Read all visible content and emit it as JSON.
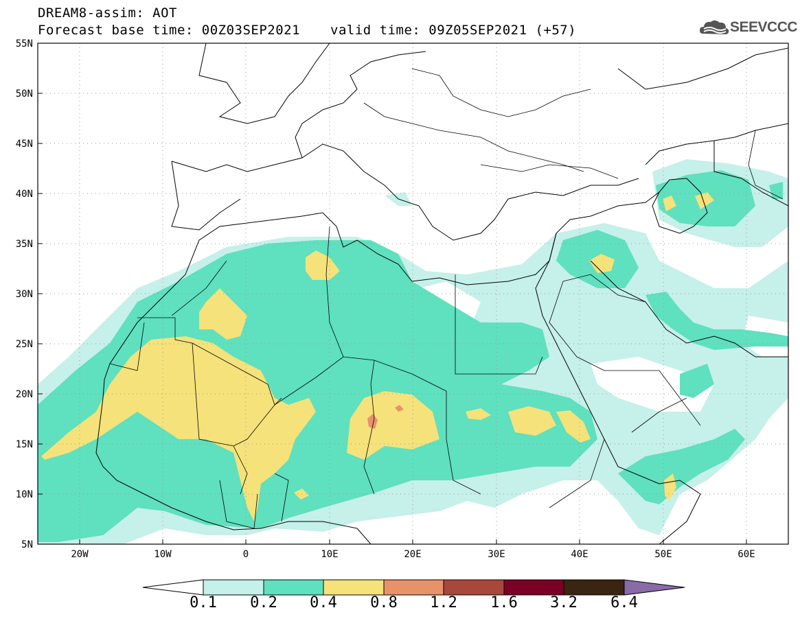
{
  "title": {
    "line1": "DREAM8-assim: AOT",
    "line2": "Forecast base time: 00Z03SEP2021",
    "valid": "valid time: 09Z05SEP2021 (+57)"
  },
  "logo": {
    "text": "SEEVCCC",
    "icon": "cloud-icon"
  },
  "map": {
    "lat_ticks": [
      "55N",
      "50N",
      "45N",
      "40N",
      "35N",
      "30N",
      "25N",
      "20N",
      "15N",
      "10N",
      "5N"
    ],
    "lon_ticks": [
      "20W",
      "10W",
      "0",
      "10E",
      "20E",
      "30E",
      "40E",
      "50E",
      "60E"
    ],
    "lat_range": [
      5,
      55
    ],
    "lon_range": [
      -25,
      65
    ]
  },
  "colorbar": {
    "ticks": [
      "0.1",
      "0.2",
      "0.4",
      "0.8",
      "1.2",
      "1.6",
      "3.2",
      "6.4"
    ],
    "colors": [
      "#c6f0ea",
      "#5fe0be",
      "#f5e27a",
      "#e8926a",
      "#a8483c",
      "#7a0026",
      "#3a2412",
      "#8a6aa8"
    ],
    "under_color": "#ffffff"
  }
}
